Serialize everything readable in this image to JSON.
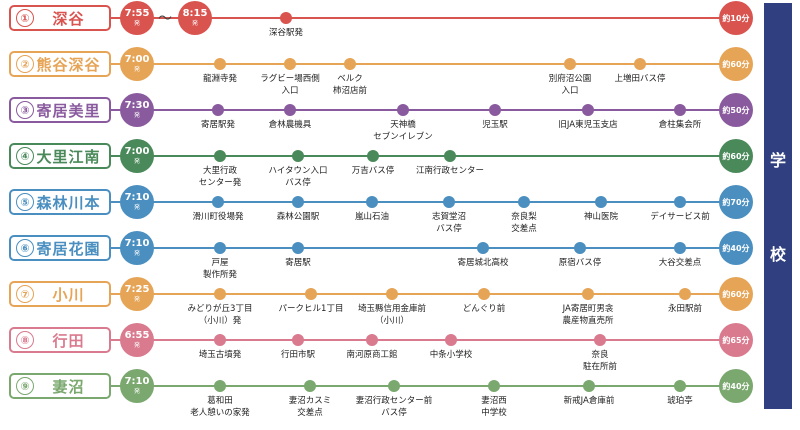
{
  "school": {
    "chars": [
      "学",
      "校"
    ],
    "color": "#2f3f7f"
  },
  "routes": [
    {
      "num": "①",
      "name": "深谷",
      "color": "#d9534f",
      "dep_time": "7:55",
      "dep_suffix": "発",
      "dep_time2": "8:15",
      "dep_suffix2": "発",
      "tilde": "〜",
      "duration": "約10分",
      "stops": [
        {
          "label": "深谷駅発"
        }
      ]
    },
    {
      "num": "②",
      "name": "熊谷深谷",
      "color": "#e6a456",
      "dep_time": "7:00",
      "dep_suffix": "発",
      "duration": "約60分",
      "stops": [
        {
          "label": "龍淵寺発"
        },
        {
          "label": "ラグビー場西側\n入口"
        },
        {
          "label": "ベルク\n柿沼店前"
        },
        {
          "label": "別府沼公園\n入口"
        },
        {
          "label": "上増田バス停"
        }
      ]
    },
    {
      "num": "③",
      "name": "寄居美里",
      "color": "#8a5a9e",
      "dep_time": "7:30",
      "dep_suffix": "発",
      "duration": "約50分",
      "stops": [
        {
          "label": "寄居駅発"
        },
        {
          "label": "倉林農機具"
        },
        {
          "label": "天神橋\nセブンイレブン"
        },
        {
          "label": "児玉駅"
        },
        {
          "label": "旧JA東児玉支店"
        },
        {
          "label": "倉柱集会所"
        }
      ]
    },
    {
      "num": "④",
      "name": "大里江南",
      "color": "#4a8a5a",
      "dep_time": "7:00",
      "dep_suffix": "発",
      "duration": "約60分",
      "stops": [
        {
          "label": "大里行政\nセンター発"
        },
        {
          "label": "ハイタウン入口\nバス停"
        },
        {
          "label": "万吉バス停"
        },
        {
          "label": "江南行政センター"
        }
      ]
    },
    {
      "num": "⑤",
      "name": "森林川本",
      "color": "#4a8fc0",
      "dep_time": "7:10",
      "dep_suffix": "発",
      "duration": "約70分",
      "stops": [
        {
          "label": "滑川町役場発"
        },
        {
          "label": "森林公園駅"
        },
        {
          "label": "嵐山石油"
        },
        {
          "label": "志賀堂沼\nバス停"
        },
        {
          "label": "奈良梨\n交差点"
        },
        {
          "label": "神山医院"
        },
        {
          "label": "デイサービス前"
        }
      ]
    },
    {
      "num": "⑥",
      "name": "寄居花園",
      "color": "#4a8fc0",
      "dep_time": "7:10",
      "dep_suffix": "発",
      "duration": "約40分",
      "stops": [
        {
          "label": "戸屋\n製作所発"
        },
        {
          "label": "寄居駅"
        },
        {
          "label": "寄居城北高校"
        },
        {
          "label": "原宿バス停"
        },
        {
          "label": "大谷交差点"
        }
      ]
    },
    {
      "num": "⑦",
      "name": "小川",
      "color": "#e6a456",
      "dep_time": "7:25",
      "dep_suffix": "発",
      "duration": "約60分",
      "stops": [
        {
          "label": "みどりが丘3丁目\n（小川）発"
        },
        {
          "label": "パークヒル1丁目"
        },
        {
          "label": "埼玉縣信用金庫前\n（小川）"
        },
        {
          "label": "どんぐり前"
        },
        {
          "label": "JA寄居町男衾\n農産物直売所"
        },
        {
          "label": "永田駅前"
        }
      ]
    },
    {
      "num": "⑧",
      "name": "行田",
      "color": "#d97a8e",
      "dep_time": "6:55",
      "dep_suffix": "発",
      "duration": "約65分",
      "stops": [
        {
          "label": "埼玉古墳発"
        },
        {
          "label": "行田市駅"
        },
        {
          "label": "南河原商工館"
        },
        {
          "label": "中条小学校"
        },
        {
          "label": "奈良\n駐在所前"
        }
      ]
    },
    {
      "num": "⑨",
      "name": "妻沼",
      "color": "#7aa86e",
      "dep_time": "7:10",
      "dep_suffix": "発",
      "duration": "約40分",
      "stops": [
        {
          "label": "葛和田\n老人憩いの家発"
        },
        {
          "label": "妻沼カスミ\n交差点"
        },
        {
          "label": "妻沼行政センター前\nバス停"
        },
        {
          "label": "妻沼西\n中学校"
        },
        {
          "label": "新戒JA倉庫前"
        },
        {
          "label": "琥珀亭"
        }
      ]
    }
  ]
}
